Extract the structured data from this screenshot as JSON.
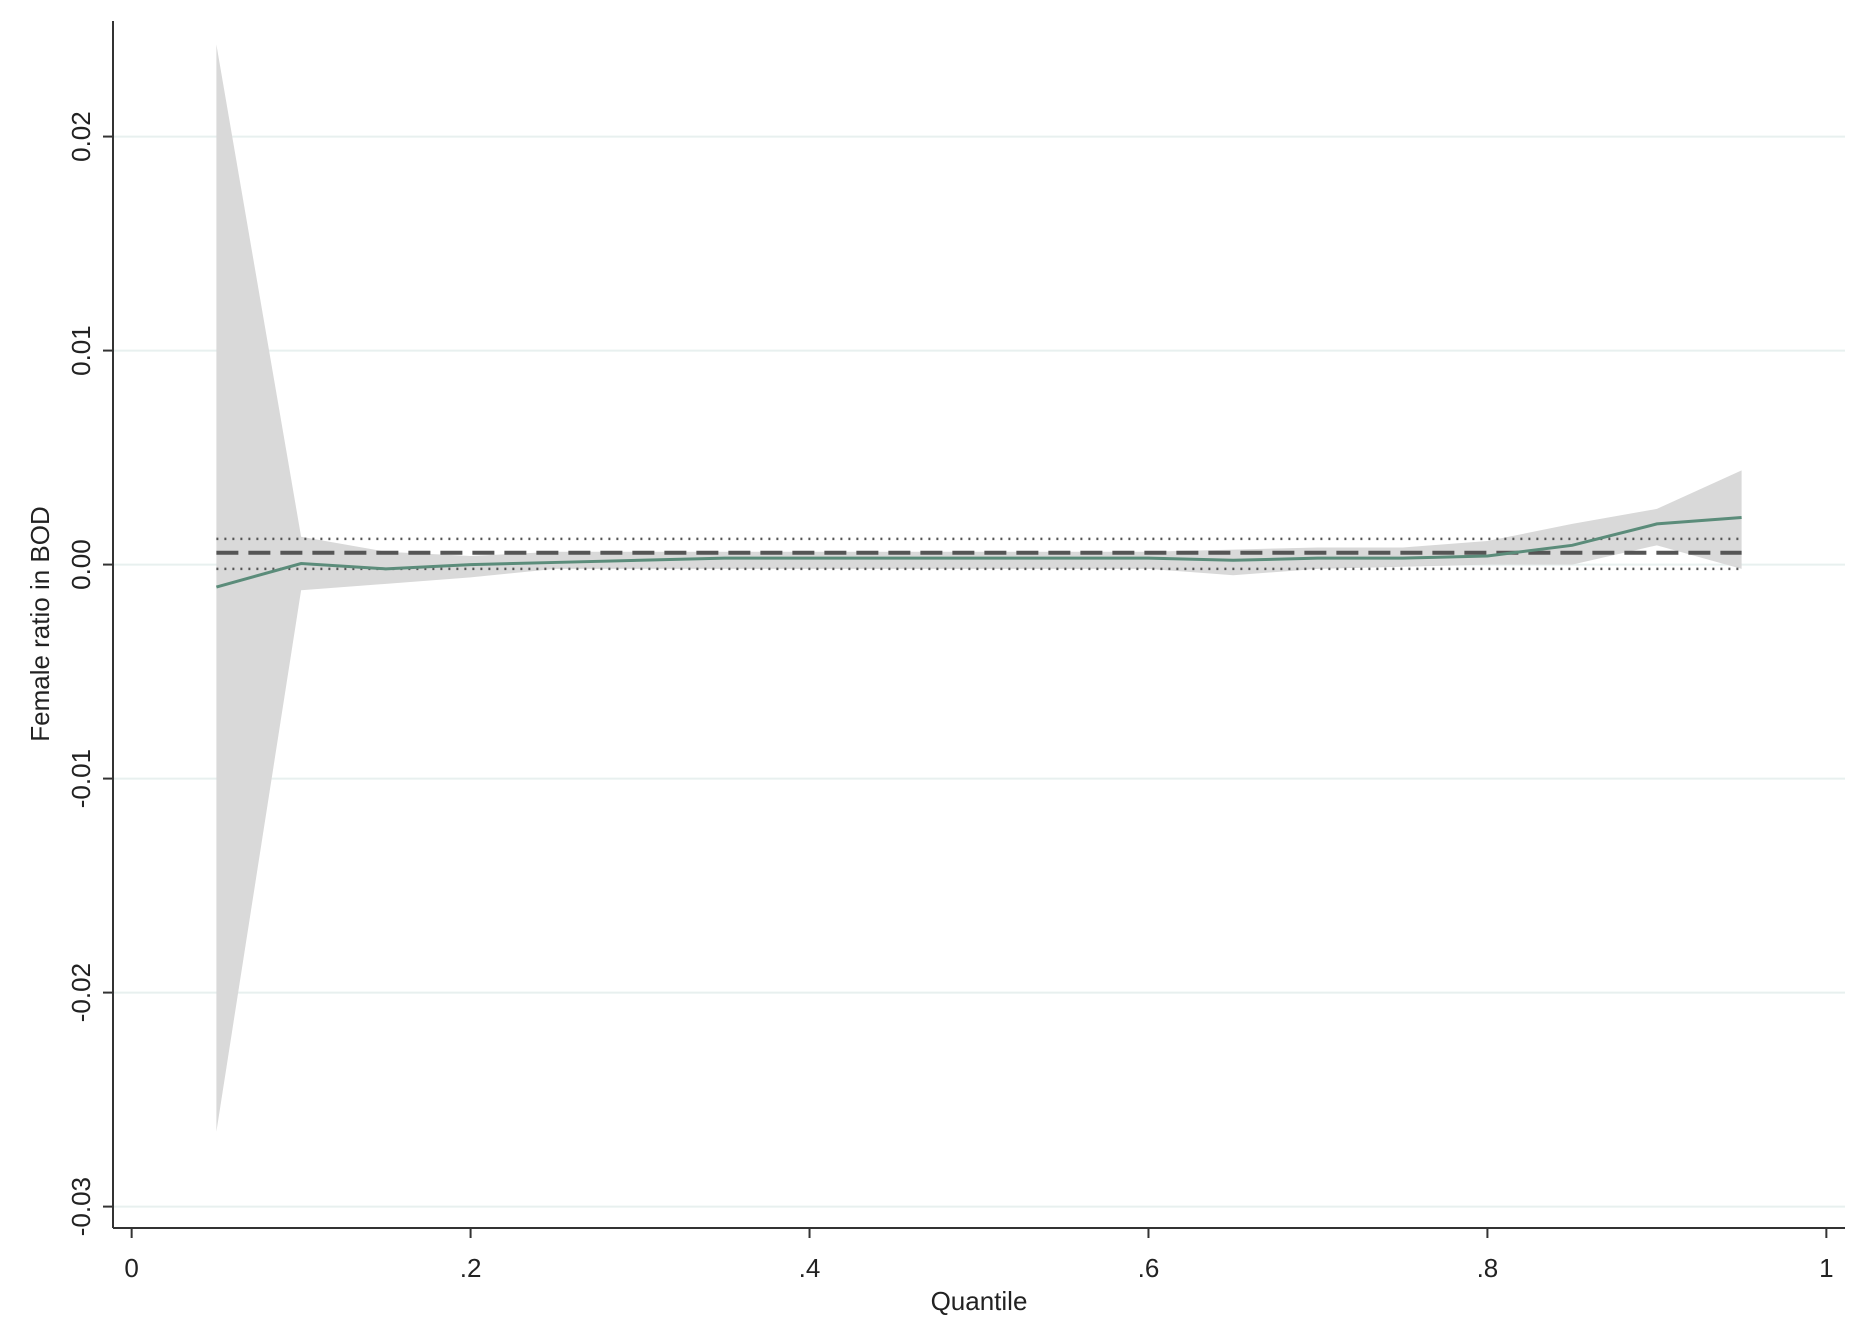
{
  "chart_data": {
    "type": "line",
    "y_label": "Female ratio in BOD",
    "x_label": "Quantile",
    "x": [
      0.05,
      0.1,
      0.15,
      0.2,
      0.25,
      0.3,
      0.35,
      0.4,
      0.45,
      0.5,
      0.55,
      0.6,
      0.65,
      0.7,
      0.75,
      0.8,
      0.85,
      0.9,
      0.95
    ],
    "series": [
      {
        "color": "#5b8c7a",
        "values": [
          -0.00105,
          5e-05,
          -0.0002,
          0.0,
          0.0001,
          0.0002,
          0.0003,
          0.0003,
          0.0003,
          0.0003,
          0.0003,
          0.0003,
          0.0002,
          0.0003,
          0.0003,
          0.0004,
          0.0009,
          0.0019,
          0.0022
        ]
      }
    ],
    "ci_upper": [
      0.0243,
      0.0013,
      0.0006,
      0.0004,
      0.0006,
      0.0006,
      0.0006,
      0.0006,
      0.0006,
      0.0006,
      0.0006,
      0.0006,
      0.0007,
      0.0008,
      0.0008,
      0.0011,
      0.0019,
      0.0026,
      0.0044
    ],
    "ci_lower": [
      -0.0265,
      -0.0012,
      -0.0009,
      -0.0006,
      -0.0002,
      -0.0002,
      -0.0002,
      -0.0002,
      -0.0002,
      -0.0002,
      -0.0002,
      -0.0002,
      -0.0005,
      -0.0002,
      -0.0001,
      0.0,
      0.0,
      0.0009,
      -0.0002
    ],
    "ci_color": "#d9d9d9",
    "ols": {
      "value": 0.00055,
      "lower": -0.0002,
      "upper": 0.0012,
      "color": "#555555"
    },
    "xlim": [
      -0.011,
      1.011
    ],
    "ylim": [
      -0.031,
      0.0254
    ],
    "xticks": [
      0,
      {
        "value": 0.2,
        "label": ".2"
      },
      {
        "value": 0.4,
        "label": ".4"
      },
      {
        "value": 0.6,
        "label": ".6"
      },
      {
        "value": 0.8,
        "label": ".8"
      },
      1
    ],
    "yticks": [
      -0.03,
      -0.02,
      -0.01,
      {
        "value": 0,
        "label": "0.00"
      },
      0.01,
      0.02
    ],
    "grid": true
  }
}
